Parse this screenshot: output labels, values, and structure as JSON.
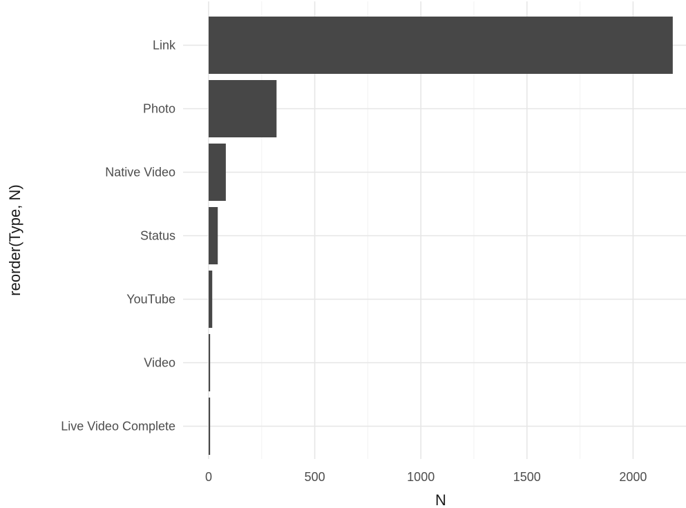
{
  "chart_data": {
    "type": "bar",
    "orientation": "horizontal",
    "categories": [
      "Link",
      "Photo",
      "Native Video",
      "Status",
      "YouTube",
      "Video",
      "Live Video Complete"
    ],
    "values": [
      2187,
      320,
      81,
      43,
      17,
      7,
      7
    ],
    "title": "",
    "xlabel": "N",
    "ylabel": "reorder(Type, N)",
    "xlim": [
      0,
      2250
    ],
    "xticks": [
      0,
      500,
      1000,
      1500,
      2000
    ],
    "xtick_labels": [
      "0",
      "500",
      "1000",
      "1500",
      "2000"
    ],
    "grid": true,
    "theme": "minimal",
    "colors": {
      "bar": "#474747",
      "grid_major": "#e6e6e6",
      "grid_minor": "#f2f2f2",
      "text": "#4d4d4d"
    }
  }
}
